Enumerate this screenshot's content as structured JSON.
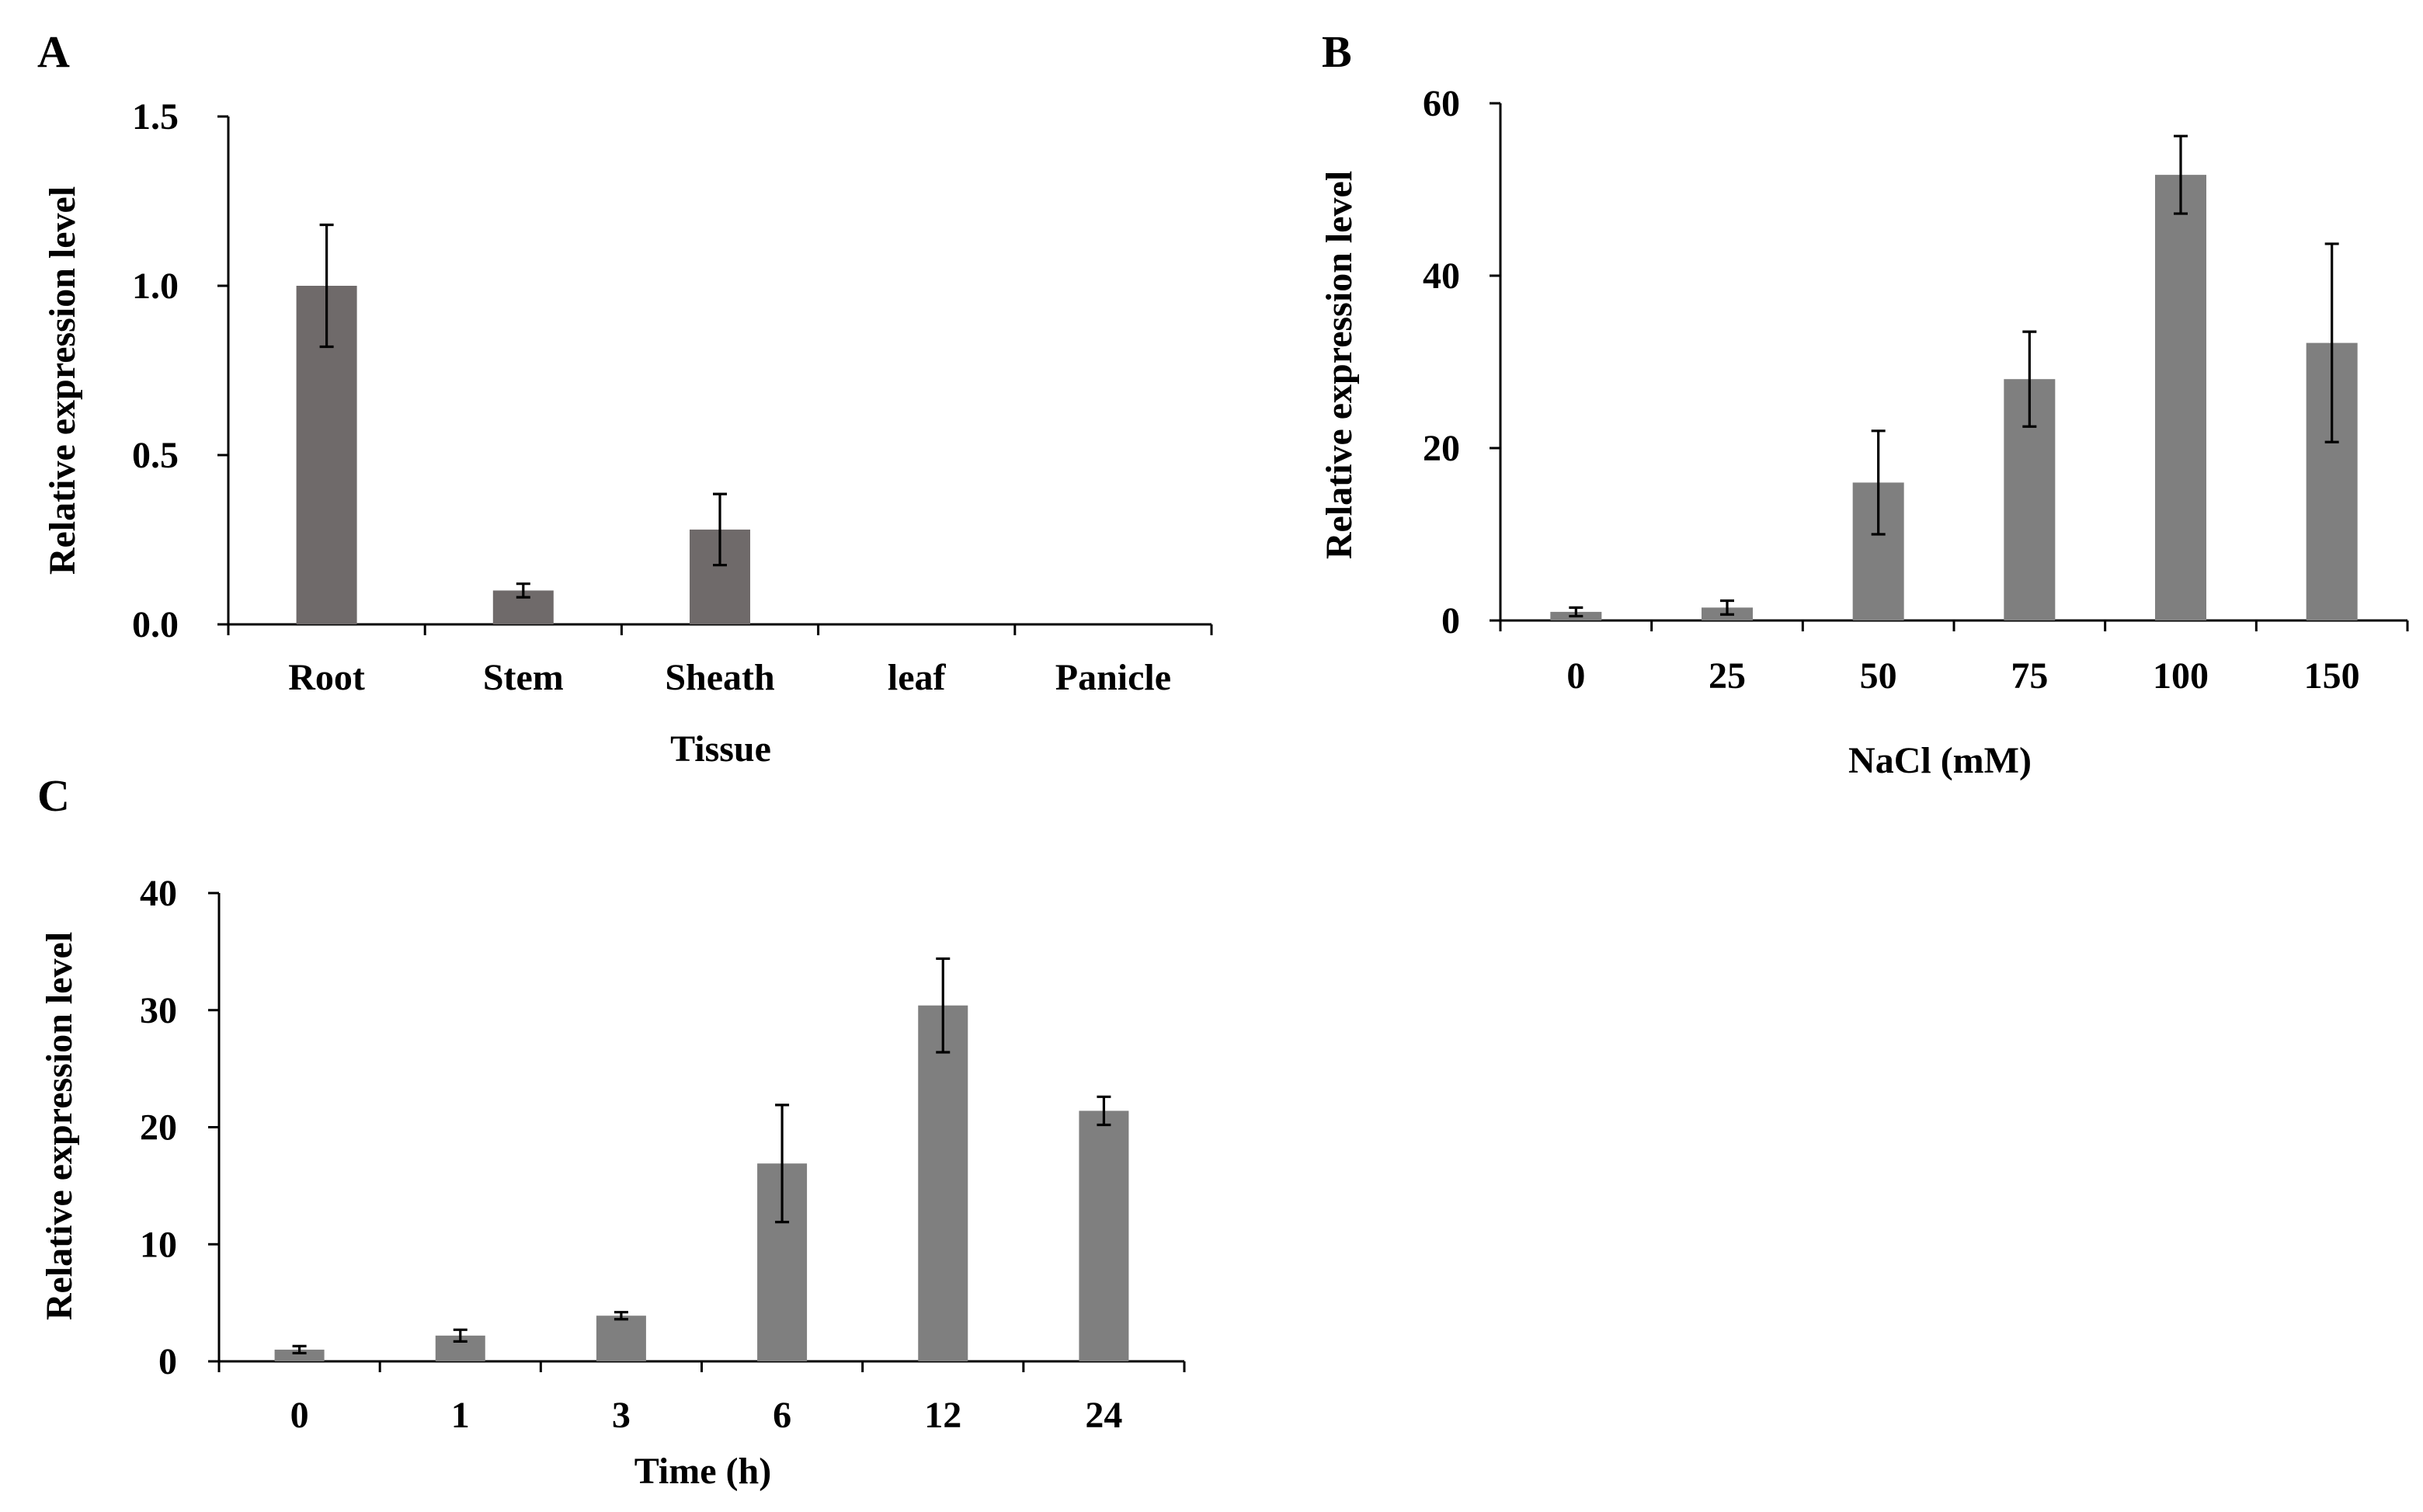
{
  "chart_data": [
    {
      "type": "bar",
      "panel_label": "A",
      "title": "",
      "categories": [
        "Root",
        "Stem",
        "Sheath",
        "leaf",
        "Panicle"
      ],
      "values": [
        1.0,
        0.1,
        0.28,
        0,
        0
      ],
      "errors": [
        0.18,
        0.02,
        0.105,
        0,
        0
      ],
      "xlabel": "Tissue",
      "ylabel": "Relative expression level",
      "ylim": [
        0,
        1.5
      ],
      "yticks": [
        "0.0",
        "0.5",
        "1.0",
        "1.5"
      ],
      "bar_color": "#6f6a6a"
    },
    {
      "type": "bar",
      "panel_label": "B",
      "title": "",
      "categories": [
        "0",
        "25",
        "50",
        "75",
        "100",
        "150"
      ],
      "values": [
        1,
        1.5,
        16,
        28,
        51.7,
        32.2
      ],
      "errors": [
        0.5,
        0.8,
        6,
        5.5,
        4.5,
        11.5
      ],
      "xlabel": "NaCl (mM)",
      "ylabel": "Relative expression level",
      "ylim": [
        0,
        60
      ],
      "yticks": [
        "0",
        "20",
        "40",
        "60"
      ],
      "bar_color": "#7f7f7f"
    },
    {
      "type": "bar",
      "panel_label": "C",
      "title": "",
      "categories": [
        "0",
        "1",
        "3",
        "6",
        "12",
        "24"
      ],
      "values": [
        1,
        2.2,
        3.9,
        16.9,
        30.4,
        21.4
      ],
      "errors": [
        0.3,
        0.5,
        0.3,
        5.0,
        4.0,
        1.2
      ],
      "xlabel": "Time (h)",
      "ylabel": "Relative expression level",
      "ylim": [
        0,
        40
      ],
      "yticks": [
        "0",
        "10",
        "20",
        "30",
        "40"
      ],
      "bar_color": "#7f7f7f"
    }
  ]
}
